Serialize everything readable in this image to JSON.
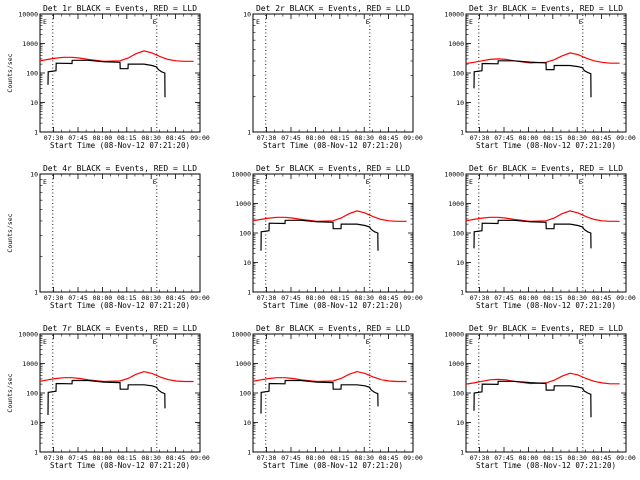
{
  "chart_data": [
    {
      "type": "line",
      "title": "Det 1r BLACK = Events, RED = LLD",
      "xlabel": "Start Time (08-Nov-12 07:21:20)",
      "ylabel": "Counts/sec",
      "yscale": "log",
      "ylim": [
        1,
        10000
      ],
      "yticks": [
        "1",
        "10",
        "100",
        "1000",
        "10000"
      ],
      "xlim": [
        0,
        100
      ],
      "xticks": [
        "07:30",
        "07:45",
        "08:00",
        "08:15",
        "08:30",
        "08:45",
        "09:00"
      ],
      "vlines": [
        8,
        73
      ],
      "markers": [
        "E",
        "E"
      ],
      "grid": false,
      "series": [
        {
          "name": "LLD",
          "color": "#ff0000",
          "x": [
            0,
            5,
            10,
            15,
            20,
            25,
            30,
            40,
            50,
            55,
            60,
            65,
            70,
            75,
            80,
            85,
            90,
            96
          ],
          "y": [
            260,
            290,
            320,
            340,
            340,
            320,
            290,
            250,
            260,
            320,
            450,
            560,
            480,
            360,
            290,
            260,
            250,
            250
          ]
        },
        {
          "name": "Events",
          "color": "#000000",
          "x": [
            5,
            5.1,
            10,
            10.1,
            20,
            20.1,
            30,
            40,
            50,
            50.1,
            55,
            55.1,
            65,
            70,
            73,
            73.1,
            74,
            76,
            78,
            78.1
          ],
          "y": [
            40,
            110,
            120,
            215,
            210,
            270,
            270,
            240,
            230,
            140,
            140,
            200,
            200,
            180,
            160,
            150,
            130,
            110,
            100,
            15
          ]
        }
      ]
    },
    {
      "type": "line",
      "title": "Det 2r BLACK = Events, RED = LLD",
      "xlabel": "Start Time (08-Nov-12 07:21:20)",
      "ylabel": "",
      "yscale": "log",
      "ylim": [
        1,
        10
      ],
      "yticks": [
        "1",
        "10"
      ],
      "xlim": [
        0,
        100
      ],
      "xticks": [
        "07:30",
        "07:45",
        "08:00",
        "08:15",
        "08:30",
        "08:45",
        "09:00"
      ],
      "vlines": [
        8,
        73
      ],
      "markers": [
        "E",
        "E"
      ],
      "grid": false,
      "series": []
    },
    {
      "type": "line",
      "title": "Det 3r BLACK = Events, RED = LLD",
      "xlabel": "Start Time (08-Nov-12 07:21:20)",
      "ylabel": "",
      "yscale": "log",
      "ylim": [
        1,
        10000
      ],
      "yticks": [
        "1",
        "10",
        "100",
        "1000",
        "10000"
      ],
      "xlim": [
        0,
        100
      ],
      "xticks": [
        "07:30",
        "07:45",
        "08:00",
        "08:15",
        "08:30",
        "08:45",
        "09:00"
      ],
      "vlines": [
        8,
        73
      ],
      "markers": [
        "E",
        "E"
      ],
      "grid": false,
      "series": [
        {
          "name": "LLD",
          "color": "#ff0000",
          "x": [
            0,
            5,
            10,
            15,
            20,
            25,
            30,
            40,
            50,
            55,
            60,
            65,
            70,
            75,
            80,
            85,
            90,
            96
          ],
          "y": [
            210,
            230,
            260,
            290,
            300,
            290,
            260,
            220,
            230,
            280,
            380,
            480,
            420,
            320,
            260,
            230,
            215,
            215
          ]
        },
        {
          "name": "Events",
          "color": "#000000",
          "x": [
            5,
            5.1,
            10,
            10.1,
            20,
            20.1,
            30,
            40,
            50,
            50.1,
            55,
            55.1,
            65,
            70,
            73,
            73.1,
            74,
            76,
            78,
            78.1
          ],
          "y": [
            30,
            110,
            120,
            210,
            205,
            260,
            260,
            235,
            220,
            130,
            130,
            180,
            180,
            165,
            150,
            140,
            120,
            105,
            95,
            15
          ]
        }
      ]
    },
    {
      "type": "line",
      "title": "Det 4r BLACK = Events, RED = LLD",
      "xlabel": "Start Time (08-Nov-12 07:21:20)",
      "ylabel": "Counts/sec",
      "yscale": "log",
      "ylim": [
        1,
        10
      ],
      "yticks": [
        "1",
        "10"
      ],
      "xlim": [
        0,
        100
      ],
      "xticks": [
        "07:30",
        "07:45",
        "08:00",
        "08:15",
        "08:30",
        "08:45",
        "09:00"
      ],
      "vlines": [
        8,
        73
      ],
      "markers": [
        "E",
        "E"
      ],
      "grid": false,
      "series": []
    },
    {
      "type": "line",
      "title": "Det 5r BLACK = Events, RED = LLD",
      "xlabel": "Start Time (08-Nov-12 07:21:20)",
      "ylabel": "",
      "yscale": "log",
      "ylim": [
        1,
        10000
      ],
      "yticks": [
        "1",
        "10",
        "100",
        "1000",
        "10000"
      ],
      "xlim": [
        0,
        100
      ],
      "xticks": [
        "07:30",
        "07:45",
        "08:00",
        "08:15",
        "08:30",
        "08:45",
        "09:00"
      ],
      "vlines": [
        8,
        73
      ],
      "markers": [
        "E",
        "E"
      ],
      "grid": false,
      "series": [
        {
          "name": "LLD",
          "color": "#ff0000",
          "x": [
            0,
            5,
            10,
            15,
            20,
            25,
            30,
            40,
            50,
            55,
            60,
            65,
            70,
            75,
            80,
            85,
            90,
            96
          ],
          "y": [
            260,
            290,
            320,
            340,
            340,
            320,
            290,
            250,
            260,
            320,
            450,
            560,
            480,
            360,
            290,
            260,
            250,
            250
          ]
        },
        {
          "name": "Events",
          "color": "#000000",
          "x": [
            5,
            5.1,
            10,
            10.1,
            20,
            20.1,
            30,
            40,
            50,
            50.1,
            55,
            55.1,
            65,
            70,
            73,
            73.1,
            74,
            76,
            78,
            78.1
          ],
          "y": [
            25,
            110,
            120,
            215,
            210,
            270,
            270,
            240,
            230,
            140,
            140,
            200,
            200,
            180,
            160,
            150,
            130,
            110,
            100,
            25
          ]
        }
      ]
    },
    {
      "type": "line",
      "title": "Det 6r BLACK = Events, RED = LLD",
      "xlabel": "Start Time (08-Nov-12 07:21:20)",
      "ylabel": "",
      "yscale": "log",
      "ylim": [
        1,
        10000
      ],
      "yticks": [
        "1",
        "10",
        "100",
        "1000",
        "10000"
      ],
      "xlim": [
        0,
        100
      ],
      "xticks": [
        "07:30",
        "07:45",
        "08:00",
        "08:15",
        "08:30",
        "08:45",
        "09:00"
      ],
      "vlines": [
        8,
        73
      ],
      "markers": [
        "E",
        "E"
      ],
      "grid": false,
      "series": [
        {
          "name": "LLD",
          "color": "#ff0000",
          "x": [
            0,
            5,
            10,
            15,
            20,
            25,
            30,
            40,
            50,
            55,
            60,
            65,
            70,
            75,
            80,
            85,
            90,
            96
          ],
          "y": [
            260,
            290,
            320,
            340,
            340,
            320,
            290,
            250,
            260,
            320,
            450,
            560,
            480,
            360,
            290,
            260,
            250,
            250
          ]
        },
        {
          "name": "Events",
          "color": "#000000",
          "x": [
            5,
            5.1,
            10,
            10.1,
            20,
            20.1,
            30,
            40,
            50,
            50.1,
            55,
            55.1,
            65,
            70,
            73,
            73.1,
            74,
            76,
            78,
            78.1
          ],
          "y": [
            30,
            110,
            120,
            215,
            210,
            270,
            270,
            240,
            230,
            140,
            140,
            200,
            200,
            180,
            160,
            150,
            130,
            110,
            100,
            30
          ]
        }
      ]
    },
    {
      "type": "line",
      "title": "Det 7r BLACK = Events, RED = LLD",
      "xlabel": "Start Time (08-Nov-12 07:21:20)",
      "ylabel": "Counts/sec",
      "yscale": "log",
      "ylim": [
        1,
        10000
      ],
      "yticks": [
        "1",
        "10",
        "100",
        "1000",
        "10000"
      ],
      "xlim": [
        0,
        100
      ],
      "xticks": [
        "07:30",
        "07:45",
        "08:00",
        "08:15",
        "08:30",
        "08:45",
        "09:00"
      ],
      "vlines": [
        8,
        73
      ],
      "markers": [
        "E",
        "E"
      ],
      "grid": false,
      "series": [
        {
          "name": "LLD",
          "color": "#ff0000",
          "x": [
            0,
            5,
            10,
            15,
            20,
            25,
            30,
            40,
            50,
            55,
            60,
            65,
            70,
            75,
            80,
            85,
            90,
            96
          ],
          "y": [
            250,
            280,
            310,
            330,
            330,
            310,
            280,
            245,
            255,
            310,
            430,
            530,
            460,
            350,
            285,
            255,
            245,
            245
          ]
        },
        {
          "name": "Events",
          "color": "#000000",
          "x": [
            5,
            5.1,
            10,
            10.1,
            20,
            20.1,
            30,
            40,
            50,
            50.1,
            55,
            55.1,
            65,
            70,
            73,
            73.1,
            74,
            76,
            78,
            78.1
          ],
          "y": [
            18,
            105,
            115,
            210,
            205,
            265,
            265,
            235,
            225,
            135,
            135,
            190,
            190,
            175,
            155,
            145,
            125,
            105,
            95,
            30
          ]
        }
      ]
    },
    {
      "type": "line",
      "title": "Det 8r BLACK = Events, RED = LLD",
      "xlabel": "Start Time (08-Nov-12 07:21:20)",
      "ylabel": "",
      "yscale": "log",
      "ylim": [
        1,
        10000
      ],
      "yticks": [
        "1",
        "10",
        "100",
        "1000",
        "10000"
      ],
      "xlim": [
        0,
        100
      ],
      "xticks": [
        "07:30",
        "07:45",
        "08:00",
        "08:15",
        "08:30",
        "08:45",
        "09:00"
      ],
      "vlines": [
        8,
        73
      ],
      "markers": [
        "E",
        "E"
      ],
      "grid": false,
      "series": [
        {
          "name": "LLD",
          "color": "#ff0000",
          "x": [
            0,
            5,
            10,
            15,
            20,
            25,
            30,
            40,
            50,
            55,
            60,
            65,
            70,
            75,
            80,
            85,
            90,
            96
          ],
          "y": [
            250,
            280,
            310,
            330,
            330,
            310,
            280,
            245,
            255,
            310,
            430,
            530,
            460,
            350,
            285,
            255,
            245,
            245
          ]
        },
        {
          "name": "Events",
          "color": "#000000",
          "x": [
            5,
            5.1,
            10,
            10.1,
            20,
            20.1,
            30,
            40,
            50,
            50.1,
            55,
            55.1,
            65,
            70,
            73,
            73.1,
            74,
            76,
            78,
            78.1
          ],
          "y": [
            20,
            105,
            115,
            210,
            205,
            265,
            265,
            235,
            225,
            135,
            135,
            190,
            190,
            175,
            155,
            145,
            125,
            105,
            95,
            35
          ]
        }
      ]
    },
    {
      "type": "line",
      "title": "Det 9r BLACK = Events, RED = LLD",
      "xlabel": "Start Time (08-Nov-12 07:21:20)",
      "ylabel": "",
      "yscale": "log",
      "ylim": [
        1,
        10000
      ],
      "yticks": [
        "1",
        "10",
        "100",
        "1000",
        "10000"
      ],
      "xlim": [
        0,
        100
      ],
      "xticks": [
        "07:30",
        "07:45",
        "08:00",
        "08:15",
        "08:30",
        "08:45",
        "09:00"
      ],
      "vlines": [
        8,
        73
      ],
      "markers": [
        "E",
        "E"
      ],
      "grid": false,
      "series": [
        {
          "name": "LLD",
          "color": "#ff0000",
          "x": [
            0,
            5,
            10,
            15,
            20,
            25,
            30,
            40,
            50,
            55,
            60,
            65,
            70,
            75,
            80,
            85,
            90,
            96
          ],
          "y": [
            200,
            220,
            250,
            280,
            290,
            280,
            250,
            210,
            220,
            270,
            370,
            470,
            410,
            310,
            250,
            220,
            205,
            205
          ]
        },
        {
          "name": "Events",
          "color": "#000000",
          "x": [
            5,
            5.1,
            10,
            10.1,
            20,
            20.1,
            30,
            40,
            50,
            50.1,
            55,
            55.1,
            65,
            70,
            73,
            73.1,
            74,
            76,
            78,
            78.1
          ],
          "y": [
            25,
            100,
            110,
            200,
            195,
            250,
            250,
            225,
            210,
            125,
            125,
            175,
            175,
            160,
            145,
            135,
            115,
            100,
            90,
            15
          ]
        }
      ]
    }
  ]
}
